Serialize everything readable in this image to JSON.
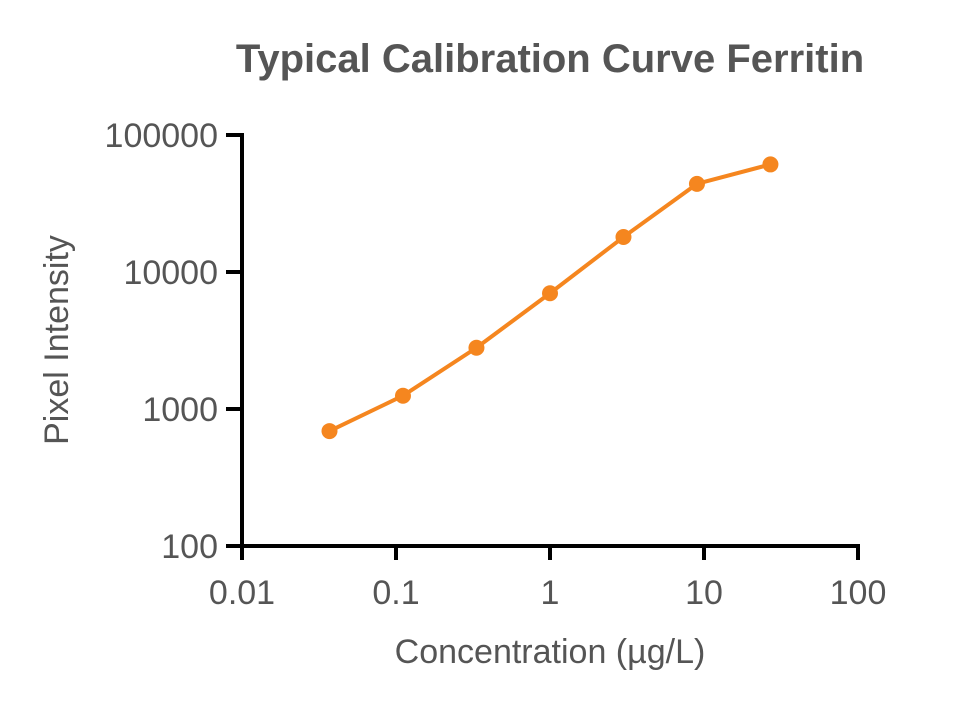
{
  "chart_data": {
    "type": "line",
    "title": "Typical Calibration Curve Ferritin",
    "xlabel": "Concentration (µg/L)",
    "ylabel": "Pixel Intensity",
    "xscale": "log",
    "yscale": "log",
    "xlim": [
      0.01,
      100
    ],
    "ylim": [
      100,
      100000
    ],
    "xticks": [
      0.01,
      0.1,
      1,
      10,
      100
    ],
    "xtick_labels": [
      "0.01",
      "0.1",
      "1",
      "10",
      "100"
    ],
    "yticks": [
      100,
      1000,
      10000,
      100000
    ],
    "ytick_labels": [
      "100",
      "1000",
      "10000",
      "100000"
    ],
    "grid": false,
    "series": [
      {
        "color": "#F5861F",
        "x": [
          0.037,
          0.111,
          0.333,
          1,
          3,
          9,
          27
        ],
        "y": [
          690,
          1250,
          2800,
          7000,
          18000,
          44000,
          61000
        ]
      }
    ]
  }
}
